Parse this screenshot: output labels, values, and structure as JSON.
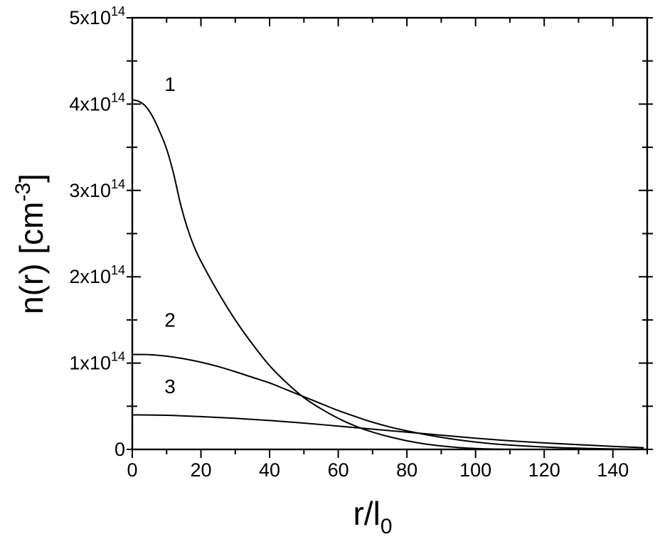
{
  "chart_data": {
    "type": "line",
    "title": "",
    "xlabel": {
      "main": "r/l",
      "sub": "0"
    },
    "ylabel": {
      "main": "n(r) [cm",
      "sup": "-3",
      "end": "]"
    },
    "xlim": [
      0,
      150
    ],
    "ylim": [
      0,
      500000000000000.0
    ],
    "grid": false,
    "legend": "none",
    "x_ticks": [
      {
        "value": 0,
        "label": "0"
      },
      {
        "value": 20,
        "label": "20"
      },
      {
        "value": 40,
        "label": "40"
      },
      {
        "value": 60,
        "label": "60"
      },
      {
        "value": 80,
        "label": "80"
      },
      {
        "value": 100,
        "label": "100"
      },
      {
        "value": 120,
        "label": "120"
      },
      {
        "value": 140,
        "label": "140"
      }
    ],
    "y_ticks": [
      {
        "value": 0,
        "base": "0",
        "exp": ""
      },
      {
        "value": 100000000000000.0,
        "base": "1x10",
        "exp": "14"
      },
      {
        "value": 200000000000000.0,
        "base": "2x10",
        "exp": "14"
      },
      {
        "value": 300000000000000.0,
        "base": "3x10",
        "exp": "14"
      },
      {
        "value": 400000000000000.0,
        "base": "4x10",
        "exp": "14"
      },
      {
        "value": 500000000000000.0,
        "base": "5x10",
        "exp": "14"
      }
    ],
    "series": [
      {
        "label": "1",
        "label_at": [
          11,
          415000000000000.0
        ],
        "x": [
          0,
          2,
          4,
          6,
          8,
          10,
          12,
          14,
          16,
          18,
          20,
          25,
          30,
          35,
          40,
          45,
          50,
          55,
          60,
          65,
          70,
          75,
          80,
          85,
          90,
          95,
          100,
          105,
          110,
          115,
          120,
          130,
          140,
          149
        ],
        "y": [
          405000000000000.0,
          403000000000000.0,
          397000000000000.0,
          385000000000000.0,
          368000000000000.0,
          348000000000000.0,
          320000000000000.0,
          285000000000000.0,
          257000000000000.0,
          235000000000000.0,
          218000000000000.0,
          182000000000000.0,
          150000000000000.0,
          122000000000000.0,
          97000000000000.0,
          77000000000000.0,
          60000000000000.0,
          47000000000000.0,
          36000000000000.0,
          27000000000000.0,
          20000000000000.0,
          14500000000000.0,
          10000000000000.0,
          6500000000000.0,
          4000000000000.0,
          2200000000000.0,
          1000000000000.0,
          400000000000.0,
          100000000000.0,
          0,
          0,
          0,
          0,
          0
        ]
      },
      {
        "label": "2",
        "label_at": [
          11,
          142000000000000.0
        ],
        "x": [
          0,
          5,
          10,
          15,
          20,
          25,
          30,
          35,
          40,
          45,
          50,
          55,
          60,
          65,
          70,
          75,
          80,
          85,
          90,
          95,
          100,
          105,
          110,
          115,
          120,
          125,
          130,
          135,
          140,
          145,
          149
        ],
        "y": [
          110000000000000.0,
          109800000000000.0,
          108000000000000.0,
          105000000000000.0,
          101000000000000.0,
          96000000000000.0,
          90000000000000.0,
          83500000000000.0,
          77000000000000.0,
          69000000000000.0,
          61000000000000.0,
          53000000000000.0,
          45000000000000.0,
          38000000000000.0,
          31500000000000.0,
          26000000000000.0,
          21500000000000.0,
          17500000000000.0,
          14000000000000.0,
          11000000000000.0,
          8500000000000.0,
          6500000000000.0,
          5000000000000.0,
          3800000000000.0,
          2800000000000.0,
          2000000000000.0,
          1400000000000.0,
          900000000000.0,
          500000000000.0,
          300000000000.0,
          200000000000.0
        ]
      },
      {
        "label": "3",
        "label_at": [
          11,
          65000000000000.0
        ],
        "x": [
          0,
          10,
          20,
          30,
          40,
          50,
          60,
          70,
          80,
          90,
          100,
          110,
          120,
          130,
          140,
          149
        ],
        "y": [
          40000000000000.0,
          39500000000000.0,
          38000000000000.0,
          36000000000000.0,
          33500000000000.0,
          30500000000000.0,
          27000000000000.0,
          23500000000000.0,
          20000000000000.0,
          16500000000000.0,
          13000000000000.0,
          10000000000000.0,
          7500000000000.0,
          5500000000000.0,
          3500000000000.0,
          2000000000000.0
        ]
      }
    ]
  }
}
